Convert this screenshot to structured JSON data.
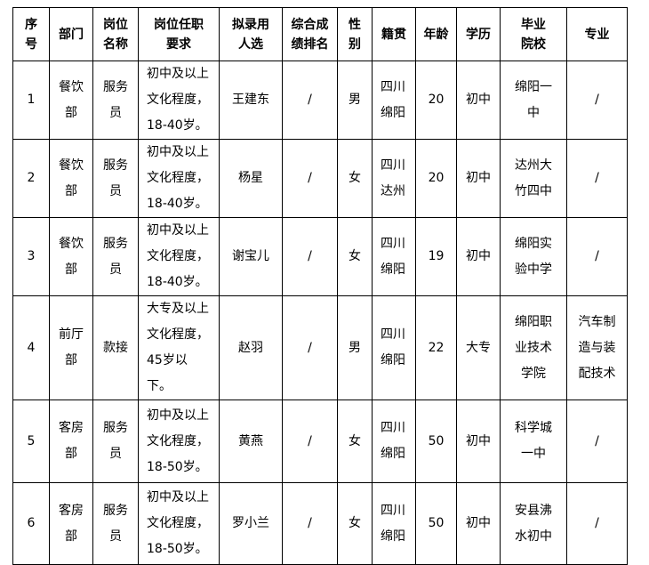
{
  "table": {
    "header": [
      "序号",
      "部门",
      "岗位名称",
      "岗位任职要求",
      "拟录用人选",
      "综合成绩排名",
      "性别",
      "籍贯",
      "年龄",
      "学历",
      "毕业院校",
      "专业"
    ],
    "rows": [
      [
        1,
        "餐饮部",
        "服务员",
        "初中及以上文化程度，18-40岁。",
        "王建东",
        "/",
        "男",
        "四川绵阳",
        20,
        "初中",
        "绵阳一中",
        "/"
      ],
      [
        2,
        "餐饮部",
        "服务员",
        "初中及以上文化程度，18-40岁。",
        "杨星",
        "/",
        "女",
        "四川达州",
        20,
        "初中",
        "达州大竹四中",
        "/"
      ],
      [
        3,
        "餐饮部",
        "服务员",
        "初中及以上文化程度，18-40岁。",
        "谢宝儿",
        "/",
        "女",
        "四川绵阳",
        19,
        "初中",
        "绵阳实验中学",
        "/"
      ],
      [
        4,
        "前厅部",
        "款接",
        "大专及以上文化程度，45岁以下。",
        "赵羽",
        "/",
        "男",
        "四川绵阳",
        22,
        "大专",
        "绵阳职业技术学院",
        "汽车制造与装配技术"
      ],
      [
        5,
        "客房部",
        "服务员",
        "初中及以上文化程度，18-50岁。",
        "黄燕",
        "/",
        "女",
        "四川绵阳",
        50,
        "初中",
        "科学城一中",
        "/"
      ],
      [
        6,
        "客房部",
        "服务员",
        "初中及以上文化程度，18-50岁。",
        "罗小兰",
        "/",
        "女",
        "四川绵阳",
        50,
        "初中",
        "安县沸水初中",
        "/"
      ]
    ]
  }
}
